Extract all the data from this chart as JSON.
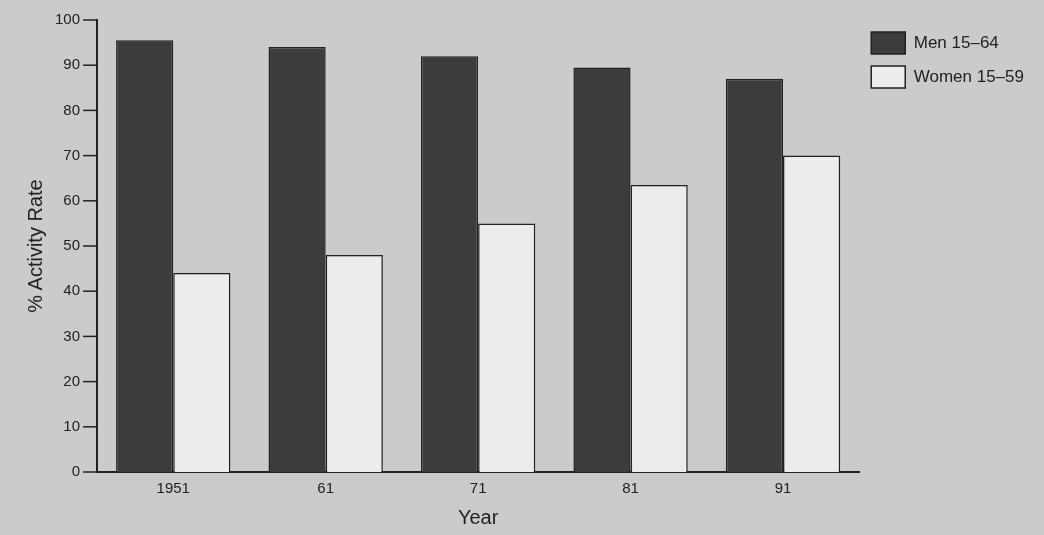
{
  "chart_data": {
    "type": "bar",
    "xlabel": "Year",
    "ylabel": "% Activity Rate",
    "categories": [
      "1951",
      "61",
      "71",
      "81",
      "91"
    ],
    "series": [
      {
        "name": "Men 15–64",
        "color": "#3c3c3c",
        "values": [
          95.5,
          94,
          92,
          89.5,
          87
        ]
      },
      {
        "name": "Women 15–59",
        "color": "#ececec",
        "values": [
          44,
          48,
          55,
          63.5,
          70
        ]
      }
    ],
    "ylim": [
      0,
      100
    ],
    "yticks": [
      0,
      10,
      20,
      30,
      40,
      50,
      60,
      70,
      80,
      90,
      100
    ],
    "grid": false,
    "legend": "top right"
  }
}
